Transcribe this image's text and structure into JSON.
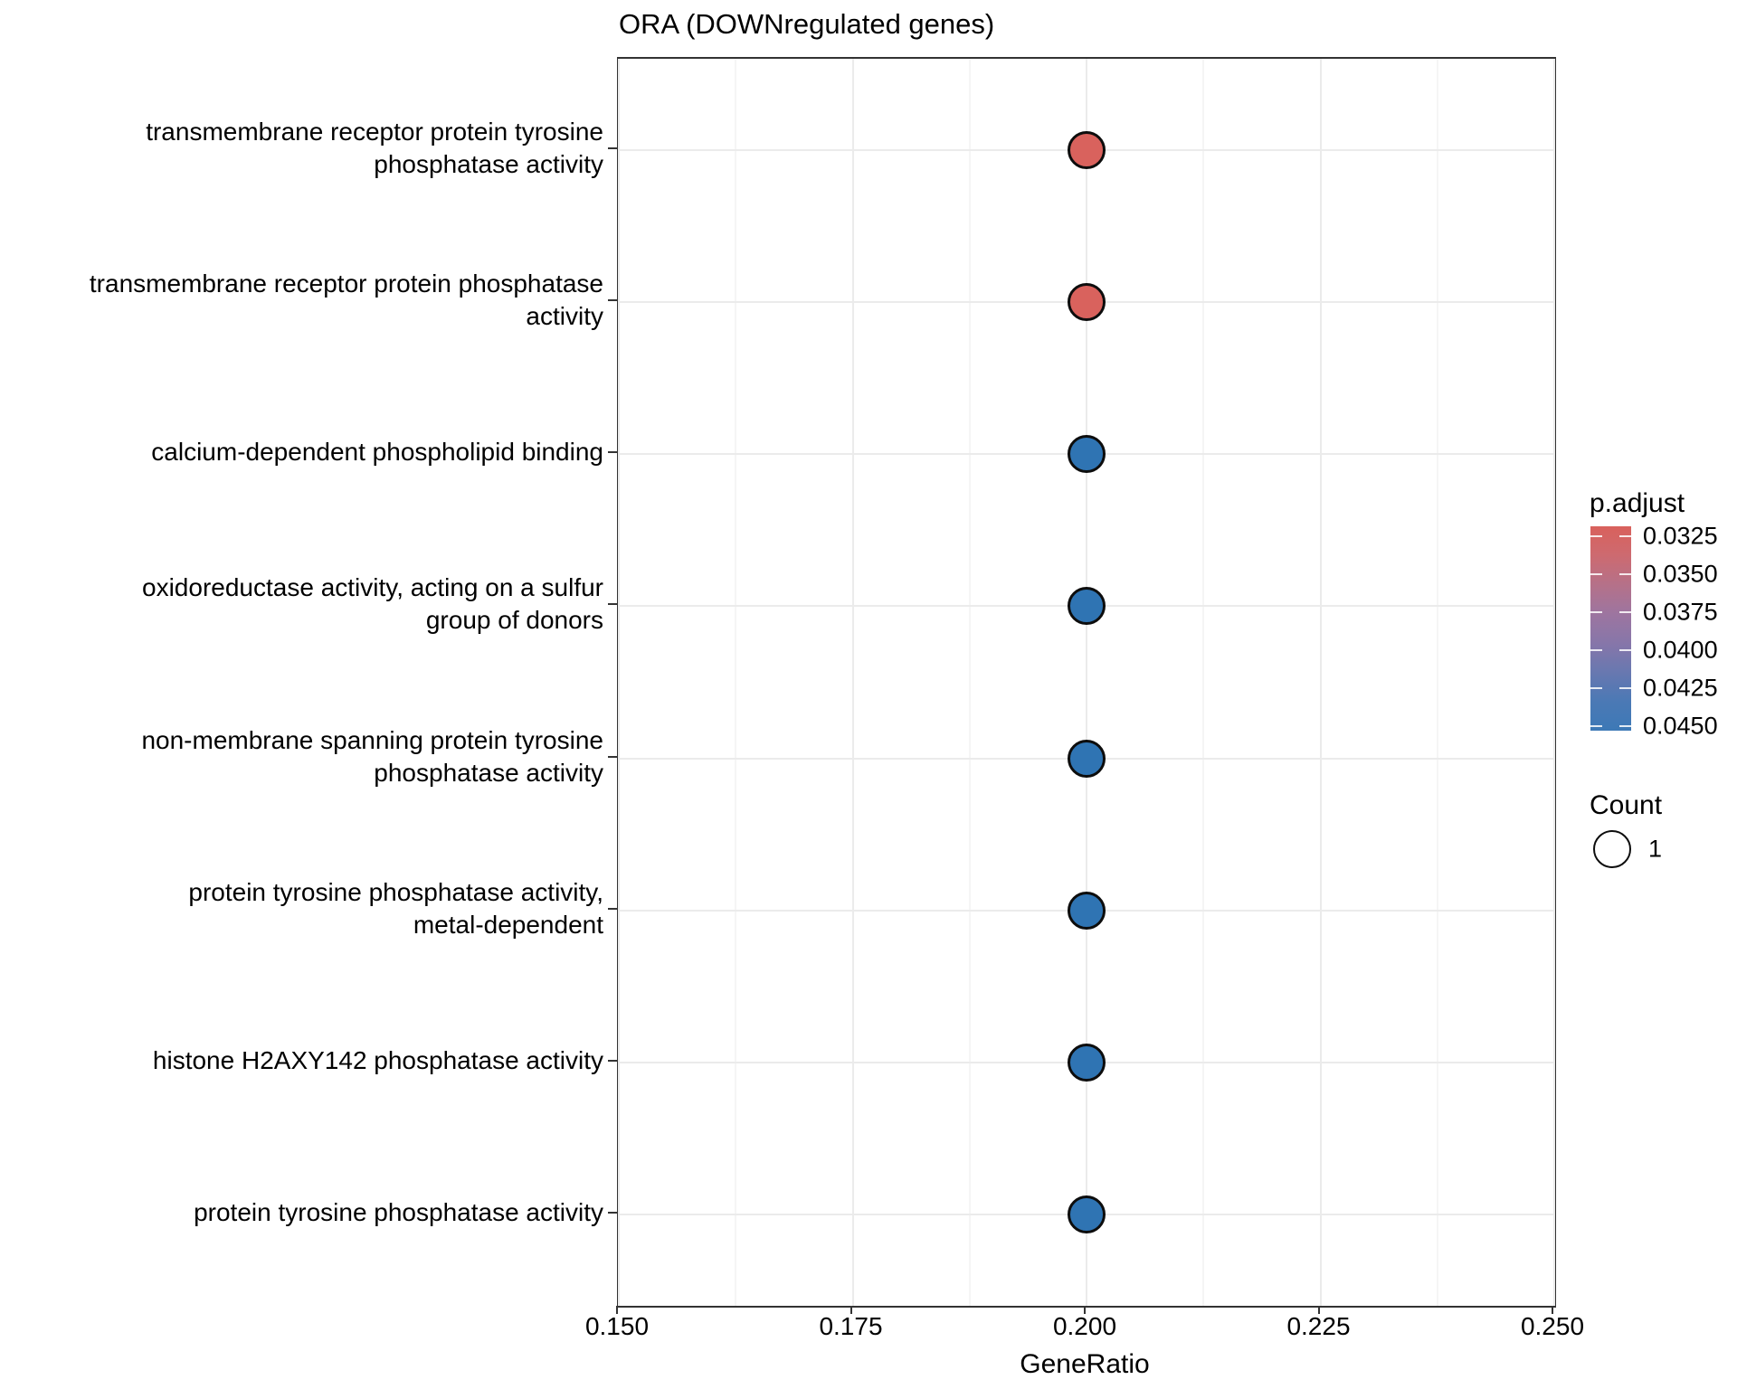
{
  "chart_data": {
    "type": "scatter",
    "title": "ORA (DOWNregulated genes)",
    "xlabel": "GeneRatio",
    "ylabel": "",
    "xlim": [
      0.15,
      0.25
    ],
    "x_ticks": [
      0.15,
      0.175,
      0.2,
      0.225,
      0.25
    ],
    "x_tick_labels": [
      "0.150",
      "0.175",
      "0.200",
      "0.225",
      "0.250"
    ],
    "x_minor_ticks": [
      0.1625,
      0.1875,
      0.2125,
      0.2375
    ],
    "grid": "major x+y, minor x only",
    "legend_position": "right",
    "categories": [
      {
        "term": "transmembrane receptor protein tyrosine phosphatase activity",
        "lines": [
          "transmembrane receptor protein tyrosine",
          "phosphatase activity"
        ]
      },
      {
        "term": "transmembrane receptor protein phosphatase activity",
        "lines": [
          "transmembrane receptor protein phosphatase",
          "activity"
        ]
      },
      {
        "term": "calcium-dependent phospholipid binding",
        "lines": [
          "calcium-dependent phospholipid binding"
        ]
      },
      {
        "term": "oxidoreductase activity, acting on a sulfur group of donors",
        "lines": [
          "oxidoreductase activity, acting on a sulfur",
          "group of donors"
        ]
      },
      {
        "term": "non-membrane spanning protein tyrosine phosphatase activity",
        "lines": [
          "non-membrane spanning protein tyrosine",
          "phosphatase activity"
        ]
      },
      {
        "term": "protein tyrosine phosphatase activity, metal-dependent",
        "lines": [
          "protein tyrosine phosphatase activity,",
          "metal-dependent"
        ]
      },
      {
        "term": "histone H2AXY142 phosphatase activity",
        "lines": [
          "histone H2AXY142 phosphatase activity"
        ]
      },
      {
        "term": "protein tyrosine phosphatase activity",
        "lines": [
          "protein tyrosine phosphatase activity"
        ]
      }
    ],
    "points": [
      {
        "term": "transmembrane receptor protein tyrosine phosphatase activity",
        "gene_ratio": 0.2,
        "count": 1,
        "p_adjust": 0.032,
        "color": "#d9625d"
      },
      {
        "term": "transmembrane receptor protein phosphatase activity",
        "gene_ratio": 0.2,
        "count": 1,
        "p_adjust": 0.032,
        "color": "#d9625d"
      },
      {
        "term": "calcium-dependent phospholipid binding",
        "gene_ratio": 0.2,
        "count": 1,
        "p_adjust": 0.045,
        "color": "#2f74b3"
      },
      {
        "term": "oxidoreductase activity, acting on a sulfur group of donors",
        "gene_ratio": 0.2,
        "count": 1,
        "p_adjust": 0.045,
        "color": "#2f74b3"
      },
      {
        "term": "non-membrane spanning protein tyrosine phosphatase activity",
        "gene_ratio": 0.2,
        "count": 1,
        "p_adjust": 0.045,
        "color": "#2f74b3"
      },
      {
        "term": "protein tyrosine phosphatase activity, metal-dependent",
        "gene_ratio": 0.2,
        "count": 1,
        "p_adjust": 0.045,
        "color": "#2f74b3"
      },
      {
        "term": "histone H2AXY142 phosphatase activity",
        "gene_ratio": 0.2,
        "count": 1,
        "p_adjust": 0.045,
        "color": "#2f74b3"
      },
      {
        "term": "protein tyrosine phosphatase activity",
        "gene_ratio": 0.2,
        "count": 1,
        "p_adjust": 0.045,
        "color": "#2f74b3"
      }
    ],
    "legend": {
      "color": {
        "title": "p.adjust",
        "tick_labels": [
          "0.0325",
          "0.0350",
          "0.0375",
          "0.0400",
          "0.0425",
          "0.0450"
        ],
        "gradient": [
          "#d9615c",
          "#cd6a70",
          "#b57189",
          "#9d75a0",
          "#8776a9",
          "#6878b0",
          "#4b79b5",
          "#3d79b6"
        ]
      },
      "size": {
        "title": "Count",
        "items": [
          {
            "label": "1",
            "count": 1
          }
        ]
      }
    },
    "colors": {
      "dot_red": "#d9625d",
      "dot_blue": "#2f74b3",
      "dot_stroke": "#0d0d0d",
      "gridline_major": "#ebebeb",
      "gridline_minor": "#f5f5f5",
      "panel_border": "#333333",
      "text": "#000000"
    }
  }
}
